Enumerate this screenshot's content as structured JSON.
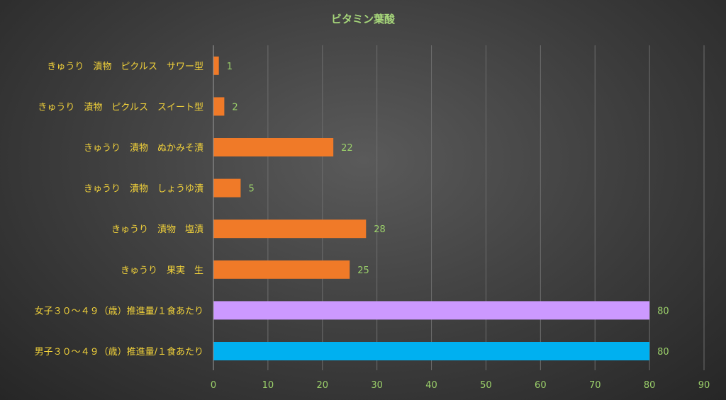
{
  "chart_data": {
    "type": "bar",
    "orientation": "horizontal",
    "title": "ビタミン葉酸",
    "categories": [
      "きゅうり　漬物　ピクルス　サワー型",
      "きゅうり　漬物　ピクルス　スイート型",
      "きゅうり　漬物　ぬかみそ漬",
      "きゅうり　漬物　しょうゆ漬",
      "きゅうり　漬物　塩漬",
      "きゅうり　果実　生",
      "女子３０～４９（歳）推進量/１食あたり",
      "男子３０～４９（歳）推進量/１食あたり"
    ],
    "values": [
      1,
      2,
      22,
      5,
      28,
      25,
      80,
      80
    ],
    "value_labels": [
      "1",
      "2",
      "22",
      "5",
      "28",
      "25",
      "80",
      "80"
    ],
    "bar_colors": [
      "#f07a28",
      "#f07a28",
      "#f07a28",
      "#f07a28",
      "#f07a28",
      "#f07a28",
      "#cc99ff",
      "#00b0f0"
    ],
    "xlim": [
      0,
      90
    ],
    "xticks": [
      0,
      10,
      20,
      30,
      40,
      50,
      60,
      70,
      80,
      90
    ],
    "xtick_labels": [
      "0",
      "10",
      "20",
      "30",
      "40",
      "50",
      "60",
      "70",
      "80",
      "90"
    ],
    "grid": true,
    "legend": "none"
  }
}
